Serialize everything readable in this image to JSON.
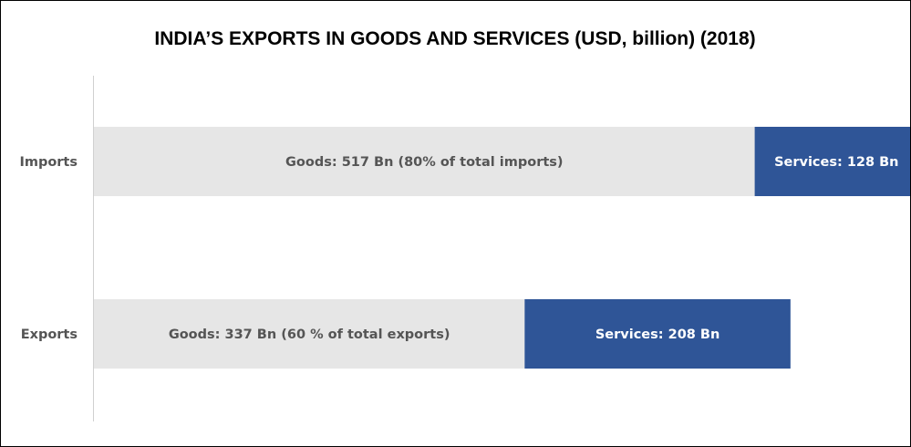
{
  "chart_data": {
    "type": "bar",
    "orientation": "horizontal",
    "stacked": true,
    "title": "INDIA’S EXPORTS IN GOODS AND SERVICES (USD, billion) (2018)",
    "categories": [
      "Imports",
      "Exports"
    ],
    "series": [
      {
        "values": [
          517,
          337
        ],
        "color": "#e6e6e6",
        "label_color": "#555555",
        "labels": [
          "Goods: 517 Bn (80% of total imports)",
          "Goods: 337 Bn (60 % of total exports)"
        ]
      },
      {
        "values": [
          128,
          208
        ],
        "color": "#2f5597",
        "label_color": "#ffffff",
        "labels": [
          "Services: 128 Bn",
          "Services: 208 Bn"
        ]
      }
    ],
    "xlim": [
      0,
      650
    ],
    "grid": false,
    "legend": "none"
  }
}
